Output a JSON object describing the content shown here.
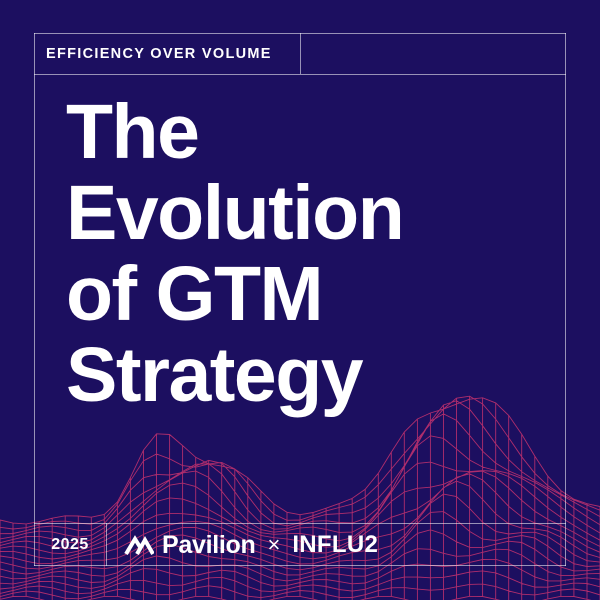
{
  "eyebrow": "EFFICIENCY OVER VOLUME",
  "headline": {
    "line1": "The",
    "line2": "Evolution",
    "line3": "of GTM",
    "line4": "Strategy"
  },
  "year": "2025",
  "partners": {
    "pavilion": "Pavilion",
    "separator": "×",
    "influ2": "INFLU2"
  },
  "colors": {
    "background": "#1c0f60",
    "mesh": "#c8326e",
    "text": "#ffffff"
  },
  "icons": [
    "pavilion-logo-icon",
    "wireframe-mountain-graphic"
  ]
}
